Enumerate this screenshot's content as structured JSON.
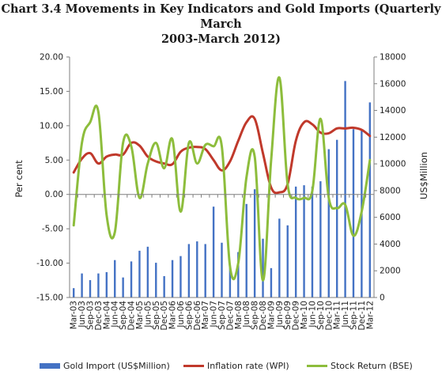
{
  "chart_data": {
    "type": "bar+line",
    "title_line1": "Chart 3.4 Movements in Key Indicators and Gold Imports (Quarterly March",
    "title_line2": "2003-March 2012)",
    "ylabel_left": "Per cent",
    "ylabel_right": "US$Million",
    "ylim_left": [
      -15,
      20
    ],
    "ylim_right": [
      0,
      18000
    ],
    "yticks_left": [
      "20.00",
      "15.00",
      "10.00",
      "5.00",
      "0.00",
      "-5.00",
      "-10.00",
      "-15.00"
    ],
    "yticks_right": [
      "18000",
      "16000",
      "14000",
      "12000",
      "10000",
      "8000",
      "6000",
      "4000",
      "2000",
      "0"
    ],
    "grid": false,
    "legend_position": "bottom",
    "categories": [
      "Mar-03",
      "Jun-03",
      "Sep-03",
      "Dec-03",
      "Mar-04",
      "Jun-04",
      "Sep-04",
      "Dec-04",
      "Mar-05",
      "Jun-05",
      "Sep-05",
      "Dec-05",
      "Mar-06",
      "Jun-06",
      "Sep-06",
      "Dec-06",
      "Mar-07",
      "Jun-07",
      "Sep-07",
      "Dec-07",
      "Mar-08",
      "Jun-08",
      "Sep-08",
      "Dec-08",
      "Mar-09",
      "Jun-09",
      "Sep-09",
      "Dec-09",
      "Mar-10",
      "Jun-10",
      "Sep-10",
      "Dec-10",
      "Mar-11",
      "Jun-11",
      "Sep-11",
      "Dec-11",
      "Mar-12"
    ],
    "series": [
      {
        "name": "Gold Import (US$Million)",
        "kind": "bar",
        "axis": "right",
        "color": "#4472c4",
        "values": [
          700,
          1800,
          1300,
          1800,
          1900,
          2800,
          1500,
          2700,
          3500,
          3800,
          2600,
          1600,
          2800,
          3100,
          4000,
          4200,
          4000,
          6800,
          4100,
          2400,
          3400,
          7000,
          8100,
          4400,
          2200,
          5900,
          5400,
          8300,
          8400,
          8300,
          8700,
          11100,
          11800,
          16200,
          12600,
          12500,
          14600
        ]
      },
      {
        "name": "Inflation rate (WPI)",
        "kind": "line",
        "axis": "left",
        "color": "#c0392b",
        "values": [
          3.2,
          5.2,
          6.0,
          4.5,
          5.5,
          5.8,
          5.8,
          7.5,
          7.1,
          5.5,
          4.8,
          4.5,
          4.4,
          6.2,
          6.8,
          6.9,
          6.6,
          5.0,
          3.5,
          4.8,
          7.8,
          10.5,
          11.0,
          6.0,
          1.0,
          0.3,
          1.5,
          7.8,
          10.5,
          10.2,
          9.0,
          8.9,
          9.6,
          9.6,
          9.7,
          9.4,
          8.5
        ]
      },
      {
        "name": "Stock Return (BSE)",
        "kind": "line",
        "axis": "left",
        "color": "#8dbd3c",
        "values": [
          -4.5,
          7.5,
          10.5,
          12.0,
          -3.0,
          -5.5,
          7.5,
          7.0,
          -0.5,
          4.5,
          7.5,
          3.8,
          8.0,
          -2.5,
          7.5,
          4.5,
          7.2,
          7.0,
          7.0,
          -10.5,
          -10.0,
          2.5,
          5.5,
          -12.5,
          5.0,
          17.0,
          1.5,
          -0.5,
          -0.5,
          0.5,
          11.0,
          -0.5,
          -2.0,
          -1.5,
          -6.0,
          -2.5,
          5.0
        ]
      }
    ]
  }
}
